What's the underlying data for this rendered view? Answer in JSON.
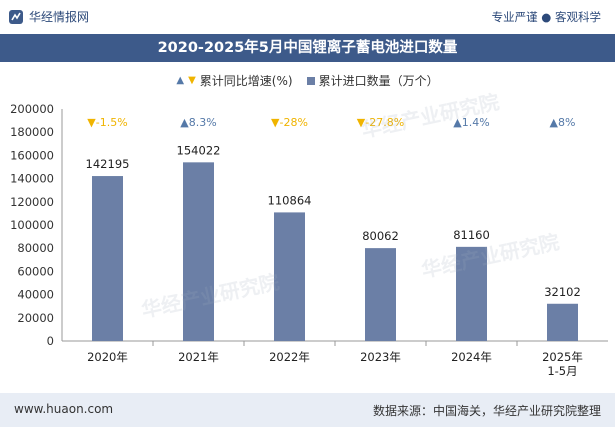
{
  "header": {
    "brand": "华经情报网",
    "slogan": "专业严谨 ● 客观科学"
  },
  "title": "2020-2025年5月中国锂离子蓄电池进口数量",
  "legend": {
    "growth_label": "累计同比增速(%)",
    "import_label": "累计进口数量（万个）"
  },
  "footer": {
    "url": "www.huaon.com",
    "source": "数据来源：中国海关，华经产业研究院整理"
  },
  "colors": {
    "bar": "#6b7fa6",
    "title_bg": "#3d5a8a",
    "up": "#5579a8",
    "down": "#f0b400"
  },
  "chart_data": {
    "type": "bar",
    "categories": [
      "2020年",
      "2021年",
      "2022年",
      "2023年",
      "2024年",
      "2025年\n1-5月"
    ],
    "series": [
      {
        "name": "累计进口数量（万个）",
        "values": [
          142195,
          154022,
          110864,
          80062,
          81160,
          32102
        ]
      },
      {
        "name": "累计同比增速(%)",
        "values": [
          -1.5,
          8.3,
          -28,
          -27.8,
          1.4,
          8
        ]
      }
    ],
    "growth_labels": [
      "-1.5%",
      "8.3%",
      "-28%",
      "-27.8%",
      "1.4%",
      "8%"
    ],
    "ylim": [
      0,
      200000
    ],
    "yticks": [
      0,
      20000,
      40000,
      60000,
      80000,
      100000,
      120000,
      140000,
      160000,
      180000,
      200000
    ],
    "grid": false,
    "legend_position": "top-center"
  }
}
